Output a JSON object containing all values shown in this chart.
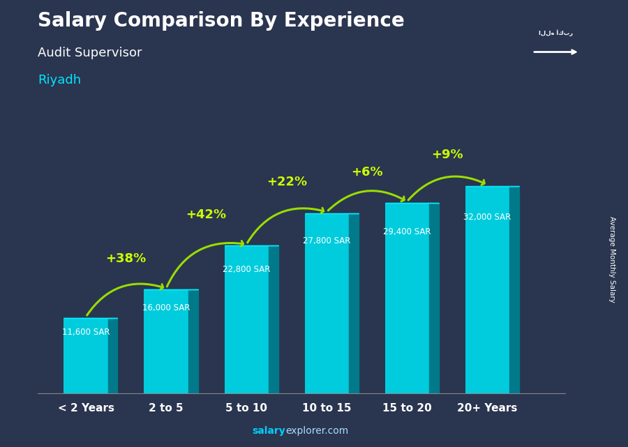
{
  "title": "Salary Comparison By Experience",
  "subtitle": "Audit Supervisor",
  "city": "Riyadh",
  "ylabel": "Average Monthly Salary",
  "categories": [
    "< 2 Years",
    "2 to 5",
    "5 to 10",
    "10 to 15",
    "15 to 20",
    "20+ Years"
  ],
  "values": [
    11600,
    16000,
    22800,
    27800,
    29400,
    32000
  ],
  "salary_labels": [
    "11,600 SAR",
    "16,000 SAR",
    "22,800 SAR",
    "27,800 SAR",
    "29,400 SAR",
    "32,000 SAR"
  ],
  "pct_changes": [
    "+38%",
    "+42%",
    "+22%",
    "+6%",
    "+9%"
  ],
  "bar_color_face": "#00ccdd",
  "bar_color_side": "#007a8a",
  "bar_color_top": "#00eeff",
  "bg_color": "#2a3550",
  "title_color": "#ffffff",
  "subtitle_color": "#ffffff",
  "city_color": "#00e5ff",
  "salary_label_color": "#ffffff",
  "pct_color": "#ccff00",
  "arrow_color": "#99dd00",
  "ylim": [
    0,
    40000
  ],
  "fig_width": 9.0,
  "fig_height": 6.41
}
